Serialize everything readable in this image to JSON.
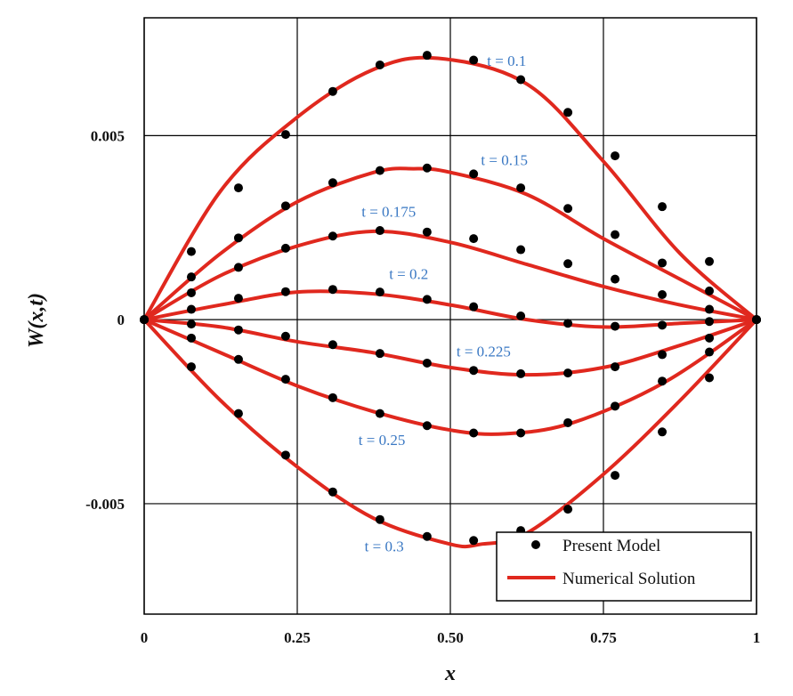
{
  "chart_data": {
    "type": "line",
    "title": "",
    "xlabel": "x",
    "ylabel": "W(x,t)",
    "xlim": [
      0,
      1
    ],
    "ylim": [
      -0.008,
      0.0082
    ],
    "grid": true,
    "x_ticks": [
      0,
      0.25,
      0.5,
      0.75,
      1
    ],
    "x_tick_labels": [
      "0",
      "0.25",
      "0.50",
      "0.75",
      "1"
    ],
    "y_ticks": [
      -0.005,
      0,
      0.005
    ],
    "y_tick_labels": [
      "-0.005",
      "0",
      "0.005"
    ],
    "legend": {
      "position": "bottom-right",
      "entries": [
        {
          "label": "Present Model",
          "marker": "dot"
        },
        {
          "label": "Numerical Solution",
          "marker": "line"
        }
      ]
    },
    "colors": {
      "curve": "#e0281e",
      "marker": "#000000",
      "label": "#3a78c3",
      "grid": "#000000"
    },
    "marker_x": [
      0,
      0.077,
      0.154,
      0.231,
      0.308,
      0.385,
      0.462,
      0.538,
      0.615,
      0.692,
      0.769,
      0.846,
      0.923,
      1
    ],
    "series": [
      {
        "label": "t = 0.1",
        "curve": [
          [
            0,
            0
          ],
          [
            0.125,
            0.0035
          ],
          [
            0.25,
            0.0055
          ],
          [
            0.375,
            0.0068
          ],
          [
            0.48,
            0.0071
          ],
          [
            0.625,
            0.0064
          ],
          [
            0.75,
            0.0043
          ],
          [
            0.875,
            0.0018
          ],
          [
            1,
            0
          ]
        ],
        "points": [
          0,
          0.00185,
          0.00358,
          0.00503,
          0.0062,
          0.00692,
          0.00718,
          0.00705,
          0.00652,
          0.00563,
          0.00445,
          0.00307,
          0.00158,
          0
        ]
      },
      {
        "label": "t = 0.15",
        "curve": [
          [
            0,
            0
          ],
          [
            0.125,
            0.0018
          ],
          [
            0.25,
            0.0032
          ],
          [
            0.375,
            0.004
          ],
          [
            0.44,
            0.0041
          ],
          [
            0.5,
            0.004
          ],
          [
            0.625,
            0.0034
          ],
          [
            0.75,
            0.0022
          ],
          [
            0.875,
            0.0011
          ],
          [
            1,
            0
          ]
        ],
        "points": [
          0,
          0.00116,
          0.00222,
          0.00309,
          0.00372,
          0.00405,
          0.00412,
          0.00396,
          0.00358,
          0.00302,
          0.00231,
          0.00154,
          0.00078,
          0
        ]
      },
      {
        "label": "t = 0.175",
        "curve": [
          [
            0,
            0
          ],
          [
            0.125,
            0.0012
          ],
          [
            0.25,
            0.002
          ],
          [
            0.375,
            0.0024
          ],
          [
            0.5,
            0.0021
          ],
          [
            0.625,
            0.0015
          ],
          [
            0.75,
            0.0009
          ],
          [
            0.875,
            0.0004
          ],
          [
            1,
            0
          ]
        ],
        "points": [
          0,
          0.00073,
          0.00142,
          0.00194,
          0.00227,
          0.00242,
          0.00238,
          0.0022,
          0.0019,
          0.00152,
          0.0011,
          0.00068,
          0.00028,
          0
        ]
      },
      {
        "label": "t = 0.2",
        "curve": [
          [
            0,
            0
          ],
          [
            0.125,
            0.0004
          ],
          [
            0.25,
            0.00075
          ],
          [
            0.375,
            0.0007
          ],
          [
            0.5,
            0.0004
          ],
          [
            0.625,
            0.0
          ],
          [
            0.75,
            -0.0002
          ],
          [
            0.875,
            -0.0001
          ],
          [
            1,
            0
          ]
        ],
        "points": [
          0,
          0.00028,
          0.00058,
          0.00076,
          0.00082,
          0.00075,
          0.00055,
          0.00035,
          0.0001,
          -0.0001,
          -0.00018,
          -0.00015,
          -5e-05,
          0
        ]
      },
      {
        "label": "t = 0.225",
        "curve": [
          [
            0,
            0
          ],
          [
            0.125,
            -0.0002
          ],
          [
            0.25,
            -0.0006
          ],
          [
            0.375,
            -0.0009
          ],
          [
            0.5,
            -0.0013
          ],
          [
            0.625,
            -0.0015
          ],
          [
            0.75,
            -0.0013
          ],
          [
            0.875,
            -0.0007
          ],
          [
            1,
            0
          ]
        ],
        "points": [
          0,
          -0.00012,
          -0.00028,
          -0.00045,
          -0.00068,
          -0.00092,
          -0.00118,
          -0.00138,
          -0.00147,
          -0.00145,
          -0.00128,
          -0.00095,
          -0.0005,
          0
        ]
      },
      {
        "label": "t = 0.25",
        "curve": [
          [
            0,
            0
          ],
          [
            0.125,
            -0.0009
          ],
          [
            0.25,
            -0.0018
          ],
          [
            0.375,
            -0.0025
          ],
          [
            0.5,
            -0.003
          ],
          [
            0.59,
            -0.0031
          ],
          [
            0.7,
            -0.0028
          ],
          [
            0.85,
            -0.0017
          ],
          [
            1,
            0
          ]
        ],
        "points": [
          0,
          -0.0005,
          -0.00108,
          -0.00162,
          -0.00212,
          -0.00255,
          -0.00288,
          -0.00308,
          -0.00308,
          -0.0028,
          -0.00235,
          -0.00167,
          -0.00088,
          0
        ]
      },
      {
        "label": "t = 0.3",
        "curve": [
          [
            0,
            0
          ],
          [
            0.125,
            -0.0022
          ],
          [
            0.25,
            -0.004
          ],
          [
            0.375,
            -0.0054
          ],
          [
            0.5,
            -0.0061
          ],
          [
            0.55,
            -0.0061
          ],
          [
            0.625,
            -0.0058
          ],
          [
            0.75,
            -0.0042
          ],
          [
            0.875,
            -0.0022
          ],
          [
            1,
            0
          ]
        ],
        "points": [
          0,
          -0.00128,
          -0.00255,
          -0.00368,
          -0.00468,
          -0.00543,
          -0.00589,
          -0.006,
          -0.00573,
          -0.00515,
          -0.00423,
          -0.00305,
          -0.00158,
          0
        ]
      }
    ],
    "label_positions_data": [
      {
        "text": "t = 0.1",
        "x": 0.56,
        "y": 0.0069
      },
      {
        "text": "t = 0.15",
        "x": 0.55,
        "y": 0.0042
      },
      {
        "text": "t = 0.175",
        "x": 0.355,
        "y": 0.0028
      },
      {
        "text": "t = 0.2",
        "x": 0.4,
        "y": 0.0011
      },
      {
        "text": "t = 0.225",
        "x": 0.51,
        "y": -0.001
      },
      {
        "text": "t = 0.25",
        "x": 0.35,
        "y": -0.0034
      },
      {
        "text": "t = 0.3",
        "x": 0.36,
        "y": -0.0063
      }
    ]
  }
}
